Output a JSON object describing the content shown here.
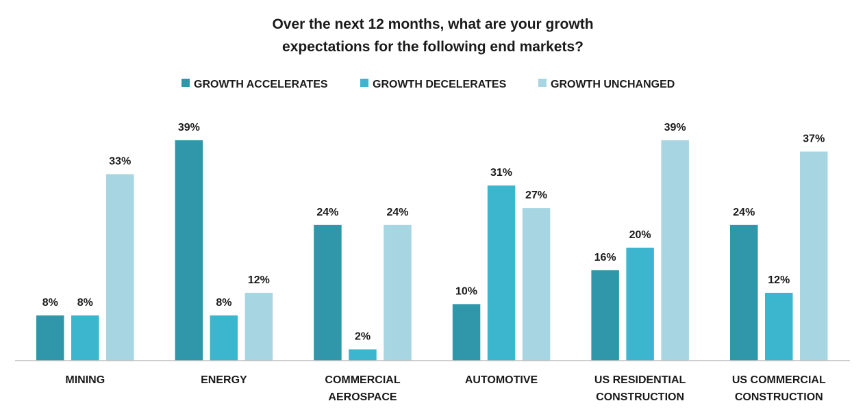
{
  "chart_data": {
    "type": "bar",
    "title": [
      "Over the next 12 months, what are your growth",
      "expectations for the following end markets?"
    ],
    "categories": [
      [
        "MINING"
      ],
      [
        "ENERGY"
      ],
      [
        "COMMERCIAL",
        "AEROSPACE"
      ],
      [
        "AUTOMOTIVE"
      ],
      [
        "US RESIDENTIAL",
        "CONSTRUCTION"
      ],
      [
        "US COMMERCIAL",
        "CONSTRUCTION"
      ]
    ],
    "series": [
      {
        "name": "GROWTH ACCELERATES",
        "color": "#3096a9",
        "values": [
          8,
          39,
          24,
          10,
          16,
          24
        ],
        "labels": [
          "8%",
          "39%",
          "24%",
          "10%",
          "16%",
          "24%"
        ]
      },
      {
        "name": "GROWTH DECELERATES",
        "color": "#3cb5ce",
        "values": [
          8,
          8,
          2,
          31,
          20,
          12
        ],
        "labels": [
          "8%",
          "8%",
          "2%",
          "31%",
          "20%",
          "12%"
        ]
      },
      {
        "name": "GROWTH UNCHANGED",
        "color": "#a7d5e2",
        "values": [
          33,
          12,
          24,
          27,
          39,
          37
        ],
        "labels": [
          "33%",
          "12%",
          "24%",
          "27%",
          "39%",
          "37%"
        ]
      }
    ],
    "ylim": [
      0,
      40
    ],
    "legend_position": "top-center",
    "grid": false
  }
}
